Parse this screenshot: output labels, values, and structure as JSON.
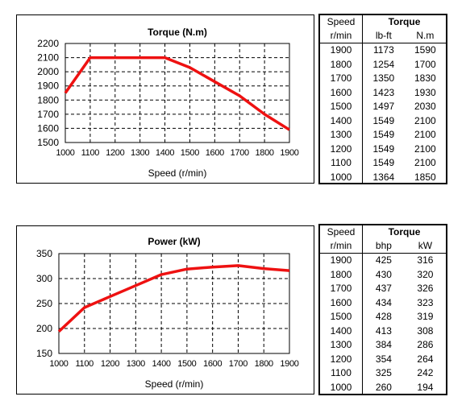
{
  "chart_data": [
    {
      "type": "line",
      "title": "Torque (N.m)",
      "xlabel": "Speed (r/min)",
      "ylabel": "",
      "x": [
        1000,
        1100,
        1200,
        1300,
        1400,
        1500,
        1600,
        1700,
        1800,
        1900
      ],
      "x_ticks": [
        "1000",
        "1100",
        "1200",
        "1300",
        "1400",
        "1500",
        "1600",
        "1700",
        "1800",
        "1900"
      ],
      "xlim": [
        1000,
        1900
      ],
      "ylim": [
        1500,
        2200
      ],
      "y_ticks": [
        "2200",
        "2100",
        "2000",
        "1900",
        "1800",
        "1700",
        "1600",
        "1500"
      ],
      "grid": true,
      "series": [
        {
          "values": [
            1850,
            2100,
            2100,
            2100,
            2100,
            2030,
            1930,
            1830,
            1700,
            1590
          ],
          "color": "#ee1111"
        }
      ]
    },
    {
      "type": "line",
      "title": "Power (kW)",
      "xlabel": "Speed (r/min)",
      "ylabel": "",
      "x": [
        1000,
        1100,
        1200,
        1300,
        1400,
        1500,
        1600,
        1700,
        1800,
        1900
      ],
      "x_ticks": [
        "1000",
        "1100",
        "1200",
        "1300",
        "1400",
        "1500",
        "1600",
        "1700",
        "1800",
        "1900"
      ],
      "xlim": [
        1000,
        1900
      ],
      "ylim": [
        150,
        350
      ],
      "y_ticks": [
        "350",
        "300",
        "250",
        "200",
        "150"
      ],
      "grid": true,
      "series": [
        {
          "values": [
            194,
            242,
            264,
            286,
            308,
            319,
            323,
            326,
            320,
            316
          ],
          "color": "#ee1111"
        }
      ]
    }
  ],
  "torque_table": {
    "header": {
      "speed": "Speed",
      "group": "Torque"
    },
    "units": {
      "speed": "r/min",
      "col1": "lb-ft",
      "col2": "N.m"
    },
    "rows": [
      [
        "1900",
        "1173",
        "1590"
      ],
      [
        "1800",
        "1254",
        "1700"
      ],
      [
        "1700",
        "1350",
        "1830"
      ],
      [
        "1600",
        "1423",
        "1930"
      ],
      [
        "1500",
        "1497",
        "2030"
      ],
      [
        "1400",
        "1549",
        "2100"
      ],
      [
        "1300",
        "1549",
        "2100"
      ],
      [
        "1200",
        "1549",
        "2100"
      ],
      [
        "1100",
        "1549",
        "2100"
      ],
      [
        "1000",
        "1364",
        "1850"
      ]
    ]
  },
  "power_table": {
    "header": {
      "speed": "Speed",
      "group": "Torque"
    },
    "units": {
      "speed": "r/min",
      "col1": "bhp",
      "col2": "kW"
    },
    "rows": [
      [
        "1900",
        "425",
        "316"
      ],
      [
        "1800",
        "430",
        "320"
      ],
      [
        "1700",
        "437",
        "326"
      ],
      [
        "1600",
        "434",
        "323"
      ],
      [
        "1500",
        "428",
        "319"
      ],
      [
        "1400",
        "413",
        "308"
      ],
      [
        "1300",
        "384",
        "286"
      ],
      [
        "1200",
        "354",
        "264"
      ],
      [
        "1100",
        "325",
        "242"
      ],
      [
        "1000",
        "260",
        "194"
      ]
    ]
  }
}
